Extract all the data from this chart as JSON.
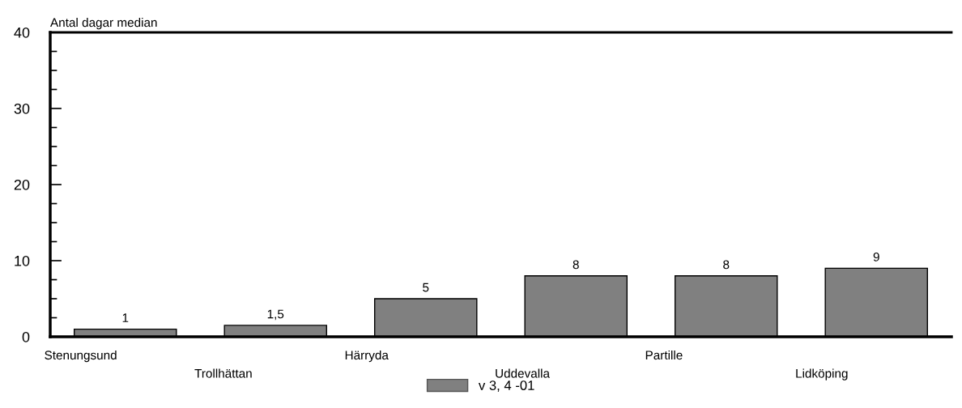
{
  "chart_data": {
    "type": "bar",
    "ylabel": "Antal dagar median",
    "categories": [
      "Stenungsund",
      "Trollhättan",
      "Härryda",
      "Uddevalla",
      "Partille",
      "Lidköping"
    ],
    "series": [
      {
        "name": "v 3, 4 -01",
        "color": "#808080",
        "values": [
          1,
          1.5,
          5,
          8,
          8,
          9
        ],
        "value_labels": [
          "1",
          "1,5",
          "5",
          "8",
          "8",
          "9"
        ]
      }
    ],
    "ylim": [
      0,
      40
    ],
    "yticks": [
      0,
      {
        "value": 2.5,
        "label": null
      },
      {
        "value": 5,
        "label": null
      },
      {
        "value": 7.5,
        "label": null
      },
      10,
      {
        "value": 12.5,
        "label": null
      },
      {
        "value": 15,
        "label": null
      },
      {
        "value": 17.5,
        "label": null
      },
      20,
      {
        "value": 22.5,
        "label": null
      },
      {
        "value": 25,
        "label": null
      },
      {
        "value": 27.5,
        "label": null
      },
      30,
      {
        "value": 32.5,
        "label": null
      },
      {
        "value": 35,
        "label": null
      },
      {
        "value": 37.5,
        "label": null
      },
      40
    ],
    "grid": false,
    "legend": "bottom"
  }
}
